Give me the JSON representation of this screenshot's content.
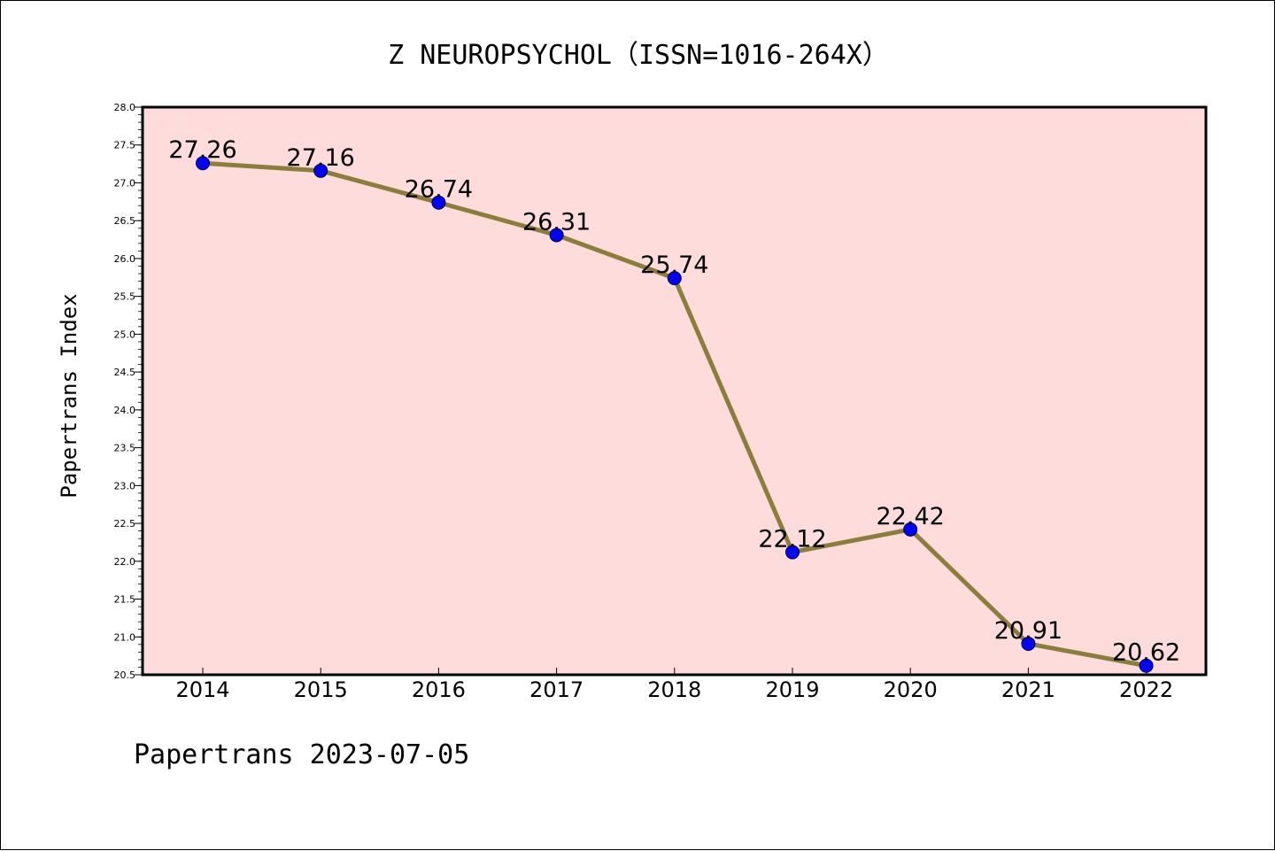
{
  "chart_data": {
    "type": "line",
    "title": "Z NEUROPSYCHOL（ISSN=1016-264X）",
    "xlabel": "",
    "ylabel": "Papertrans Index",
    "categories": [
      "2014",
      "2015",
      "2016",
      "2017",
      "2018",
      "2019",
      "2020",
      "2021",
      "2022"
    ],
    "values": [
      27.26,
      27.16,
      26.74,
      26.31,
      25.74,
      22.12,
      22.42,
      20.91,
      20.62
    ],
    "data_labels": [
      "27.26",
      "27.16",
      "26.74",
      "26.31",
      "25.74",
      "22.12",
      "22.42",
      "20.91",
      "20.62"
    ],
    "ylim": [
      20.5,
      28.0
    ],
    "yticks": [
      "20.5",
      "21.0",
      "21.5",
      "22.0",
      "22.5",
      "23.0",
      "23.5",
      "24.0",
      "24.5",
      "25.0",
      "25.5",
      "26.0",
      "26.5",
      "27.0",
      "27.5",
      "28.0"
    ],
    "grid": false,
    "colors": {
      "line": "#8b7d3a",
      "marker": "#0000ff",
      "plot_background": "#fddcdb"
    }
  },
  "footer": "Papertrans 2023-07-05"
}
